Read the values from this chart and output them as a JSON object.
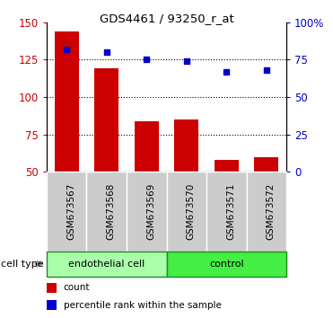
{
  "title": "GDS4461 / 93250_r_at",
  "samples": [
    "GSM673567",
    "GSM673568",
    "GSM673569",
    "GSM673570",
    "GSM673571",
    "GSM673572"
  ],
  "bar_values": [
    144,
    119,
    84,
    85,
    58,
    60
  ],
  "dot_values": [
    82,
    80,
    75,
    74,
    67,
    68
  ],
  "bar_color": "#cc0000",
  "dot_color": "#0000cc",
  "ylim_left": [
    50,
    150
  ],
  "ylim_right": [
    0,
    100
  ],
  "yticks_left": [
    50,
    75,
    100,
    125,
    150
  ],
  "yticks_right": [
    0,
    25,
    50,
    75,
    100
  ],
  "ytick_labels_right": [
    "0",
    "25",
    "50",
    "75",
    "100%"
  ],
  "groups": [
    {
      "label": "endothelial cell",
      "span": [
        0,
        3
      ],
      "color": "#aaffaa"
    },
    {
      "label": "control",
      "span": [
        3,
        6
      ],
      "color": "#44ee44"
    }
  ],
  "cell_type_label": "cell type",
  "legend_items": [
    {
      "label": "count",
      "color": "#cc0000"
    },
    {
      "label": "percentile rank within the sample",
      "color": "#0000cc"
    }
  ],
  "dotted_lines": [
    75,
    100,
    125
  ],
  "bar_bottom": 50,
  "tick_label_color_left": "#cc0000",
  "tick_label_color_right": "#0000cc",
  "gray_box_color": "#cccccc",
  "n_samples": 6
}
